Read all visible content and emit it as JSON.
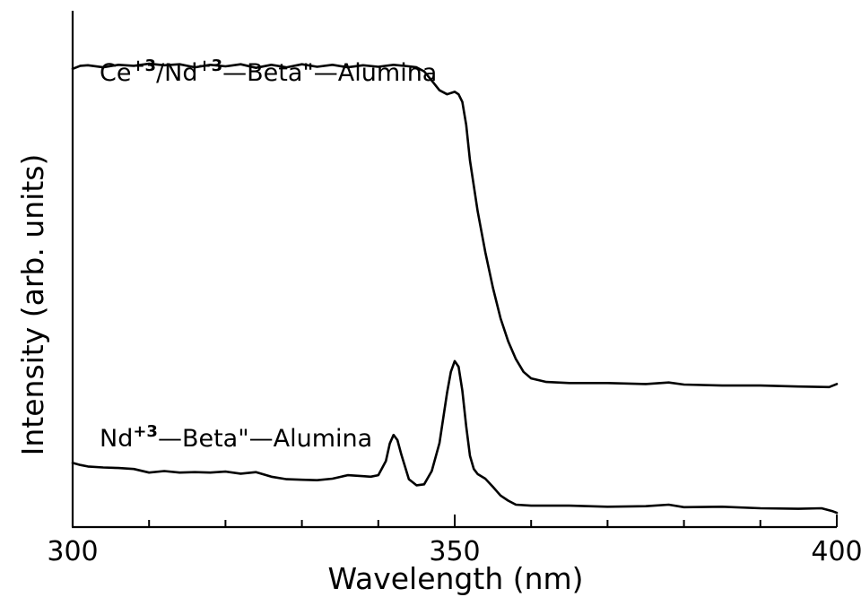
{
  "chart_data": {
    "type": "line",
    "xlabel": "Wavelength (nm)",
    "ylabel": "Intensity (arb. units)",
    "xlim": [
      300,
      400
    ],
    "ylim": [
      0,
      1
    ],
    "x_ticks_major": [
      300,
      350,
      400
    ],
    "x_tick_labels": [
      "300",
      "350",
      "400"
    ],
    "x_ticks_minor": [
      310,
      320,
      330,
      340,
      360,
      370,
      380,
      390
    ],
    "grid": false,
    "legend": "none",
    "series": [
      {
        "label_parts": [
          {
            "text": "Ce",
            "sup": false
          },
          {
            "text": "+3",
            "sup": true
          },
          {
            "text": "/Nd",
            "sup": false
          },
          {
            "text": "+3",
            "sup": true
          },
          {
            "text": "—Beta\"—Alumina",
            "sup": false
          }
        ],
        "x": [
          300,
          301,
          302,
          304,
          306,
          308,
          310,
          312,
          314,
          316,
          318,
          320,
          322,
          324,
          326,
          328,
          330,
          332,
          334,
          336,
          338,
          340,
          342,
          344,
          345,
          346,
          347,
          348,
          349,
          350,
          350.5,
          351,
          351.5,
          352,
          353,
          354,
          355,
          356,
          357,
          358,
          359,
          360,
          362,
          365,
          370,
          375,
          378,
          380,
          385,
          390,
          395,
          399,
          400
        ],
        "y": [
          0.9,
          0.906,
          0.907,
          0.903,
          0.908,
          0.906,
          0.91,
          0.907,
          0.909,
          0.903,
          0.908,
          0.905,
          0.909,
          0.902,
          0.908,
          0.903,
          0.909,
          0.904,
          0.908,
          0.903,
          0.907,
          0.904,
          0.908,
          0.905,
          0.903,
          0.895,
          0.877,
          0.858,
          0.85,
          0.855,
          0.85,
          0.835,
          0.79,
          0.72,
          0.62,
          0.54,
          0.47,
          0.41,
          0.365,
          0.33,
          0.305,
          0.292,
          0.285,
          0.283,
          0.283,
          0.281,
          0.284,
          0.28,
          0.278,
          0.278,
          0.276,
          0.275,
          0.281
        ]
      },
      {
        "label_parts": [
          {
            "text": "Nd",
            "sup": false
          },
          {
            "text": "+3",
            "sup": true
          },
          {
            "text": "—Beta\"—Alumina",
            "sup": false
          }
        ],
        "x": [
          300,
          301,
          302,
          304,
          306,
          308,
          310,
          312,
          314,
          316,
          318,
          320,
          322,
          324,
          326,
          328,
          330,
          332,
          334,
          336,
          338,
          339,
          340,
          341,
          341.5,
          342,
          342.5,
          343,
          344,
          345,
          346,
          347,
          348,
          349,
          349.5,
          350,
          350.5,
          351,
          351.5,
          352,
          352.5,
          353,
          354,
          355,
          356,
          357,
          358,
          360,
          362,
          365,
          370,
          375,
          378,
          380,
          385,
          390,
          395,
          398,
          399.5,
          400
        ],
        "y": [
          0.126,
          0.122,
          0.119,
          0.117,
          0.116,
          0.114,
          0.107,
          0.11,
          0.107,
          0.108,
          0.107,
          0.109,
          0.105,
          0.108,
          0.099,
          0.094,
          0.093,
          0.092,
          0.095,
          0.102,
          0.1,
          0.099,
          0.102,
          0.13,
          0.164,
          0.181,
          0.171,
          0.143,
          0.094,
          0.082,
          0.084,
          0.11,
          0.165,
          0.264,
          0.305,
          0.326,
          0.315,
          0.268,
          0.198,
          0.14,
          0.114,
          0.104,
          0.095,
          0.079,
          0.062,
          0.052,
          0.044,
          0.042,
          0.042,
          0.042,
          0.04,
          0.041,
          0.044,
          0.039,
          0.04,
          0.037,
          0.036,
          0.037,
          0.031,
          0.028
        ]
      }
    ]
  }
}
